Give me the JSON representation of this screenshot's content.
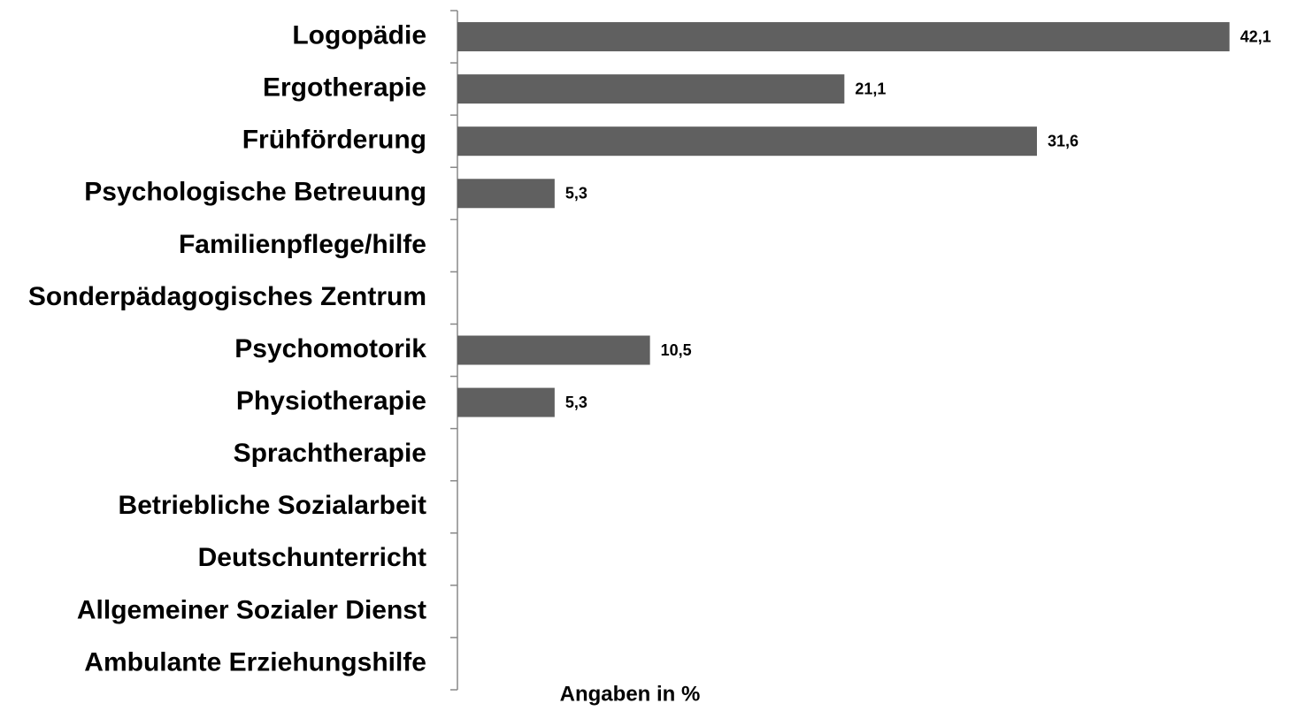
{
  "chart_data": {
    "type": "bar",
    "orientation": "horizontal",
    "categories": [
      "Logopädie",
      "Ergotherapie",
      "Frühförderung",
      "Psychologische Betreuung",
      "Familienpflege/hilfe",
      "Sonderpädagogisches Zentrum",
      "Psychomotorik",
      "Physiotherapie",
      "Sprachtherapie",
      "Betriebliche Sozialarbeit",
      "Deutschunterricht",
      "Allgemeiner Sozialer Dienst",
      "Ambulante Erziehungshilfe"
    ],
    "values": [
      42.1,
      21.1,
      31.6,
      5.3,
      null,
      null,
      10.5,
      5.3,
      null,
      null,
      null,
      null,
      null
    ],
    "value_labels": [
      "42,1",
      "21,1",
      "31,6",
      "5,3",
      null,
      null,
      "10,5",
      "5,3",
      null,
      null,
      null,
      null,
      null
    ],
    "color": "#606060",
    "xlabel": "Angaben in %",
    "xlim": [
      0,
      44
    ]
  }
}
